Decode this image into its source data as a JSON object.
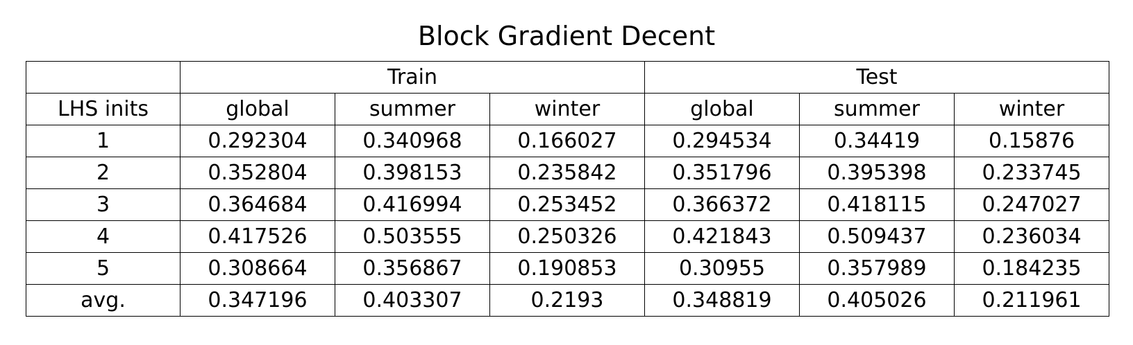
{
  "chart_data": {
    "type": "table",
    "title": "Block Gradient Decent",
    "group_headers": [
      "",
      "Train",
      "Test"
    ],
    "columns": [
      "LHS inits",
      "global",
      "summer",
      "winter",
      "global",
      "summer",
      "winter"
    ],
    "rows": [
      [
        "1",
        "0.292304",
        "0.340968",
        "0.166027",
        "0.294534",
        "0.34419",
        "0.15876"
      ],
      [
        "2",
        "0.352804",
        "0.398153",
        "0.235842",
        "0.351796",
        "0.395398",
        "0.233745"
      ],
      [
        "3",
        "0.364684",
        "0.416994",
        "0.253452",
        "0.366372",
        "0.418115",
        "0.247027"
      ],
      [
        "4",
        "0.417526",
        "0.503555",
        "0.250326",
        "0.421843",
        "0.509437",
        "0.236034"
      ],
      [
        "5",
        "0.308664",
        "0.356867",
        "0.190853",
        "0.30955",
        "0.357989",
        "0.184235"
      ],
      [
        "avg.",
        "0.347196",
        "0.403307",
        "0.2193",
        "0.348819",
        "0.405026",
        "0.211961"
      ]
    ]
  }
}
